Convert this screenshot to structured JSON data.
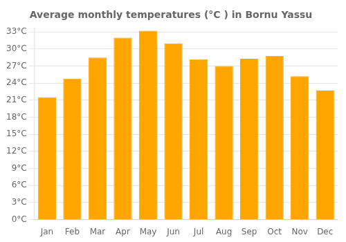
{
  "chart_data": {
    "type": "bar",
    "title": "Average monthly temperatures (°C ) in Bornu Yassu",
    "categories": [
      "Jan",
      "Feb",
      "Mar",
      "Apr",
      "May",
      "Jun",
      "Jul",
      "Aug",
      "Sep",
      "Oct",
      "Nov",
      "Dec"
    ],
    "values": [
      21.5,
      24.8,
      28.5,
      32.0,
      33.2,
      31.0,
      28.2,
      27.0,
      28.3,
      28.8,
      25.2,
      22.7
    ],
    "color": "#FFA500",
    "ylim": [
      0,
      33.66
    ],
    "yticks": [
      {
        "value": 0,
        "label": "0°C"
      },
      {
        "value": 3,
        "label": "3°C"
      },
      {
        "value": 6,
        "label": "6°C"
      },
      {
        "value": 9,
        "label": "9°C"
      },
      {
        "value": 12,
        "label": "12°C"
      },
      {
        "value": 15,
        "label": "15°C"
      },
      {
        "value": 18,
        "label": "18°C"
      },
      {
        "value": 21,
        "label": "21°C"
      },
      {
        "value": 24,
        "label": "24°C"
      },
      {
        "value": 27,
        "label": "27°C"
      },
      {
        "value": 30,
        "label": "30°C"
      },
      {
        "value": 33,
        "label": "33°C"
      }
    ],
    "grid": true
  }
}
